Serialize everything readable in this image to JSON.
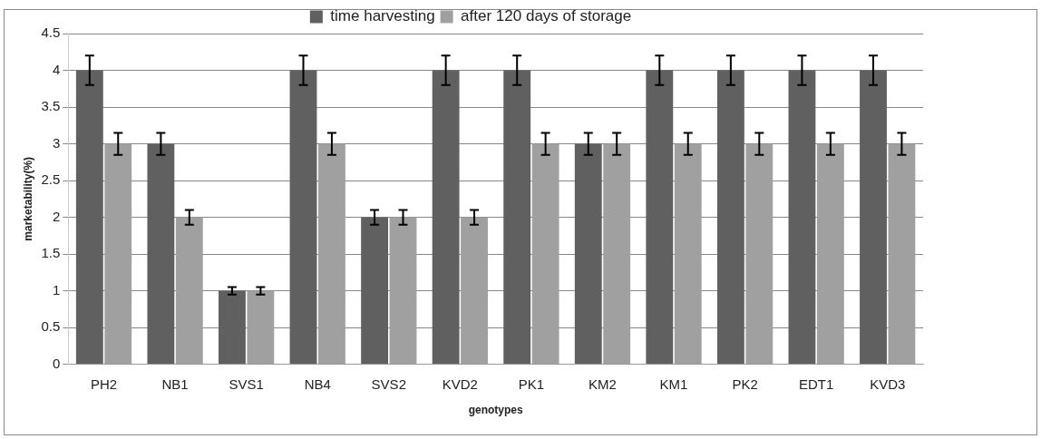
{
  "chart_data": {
    "type": "bar",
    "xlabel": "genotypes",
    "ylabel": "marketability(%)",
    "categories": [
      "PH2",
      "NB1",
      "SVS1",
      "NB4",
      "SVS2",
      "KVD2",
      "PK1",
      "KM2",
      "KM1",
      "PK2",
      "EDT1",
      "KVD3"
    ],
    "series": [
      {
        "name": "time harvesting",
        "color": "#606060",
        "values": [
          4,
          3,
          1,
          4,
          2,
          4,
          4,
          3,
          4,
          4,
          4,
          4
        ],
        "errors": [
          0.2,
          0.15,
          0.05,
          0.2,
          0.1,
          0.2,
          0.2,
          0.15,
          0.2,
          0.2,
          0.2,
          0.2
        ]
      },
      {
        "name": "after 120 days of storage",
        "color": "#a0a0a0",
        "values": [
          3,
          2,
          1,
          3,
          2,
          2,
          3,
          3,
          3,
          3,
          3,
          3
        ],
        "errors": [
          0.15,
          0.1,
          0.05,
          0.15,
          0.1,
          0.1,
          0.15,
          0.15,
          0.15,
          0.15,
          0.15,
          0.15
        ]
      }
    ],
    "ylim": [
      0,
      4.5
    ],
    "yticks": [
      0,
      0.5,
      1,
      1.5,
      2,
      2.5,
      3,
      3.5,
      4,
      4.5
    ],
    "grid": "y",
    "legend": "top"
  }
}
